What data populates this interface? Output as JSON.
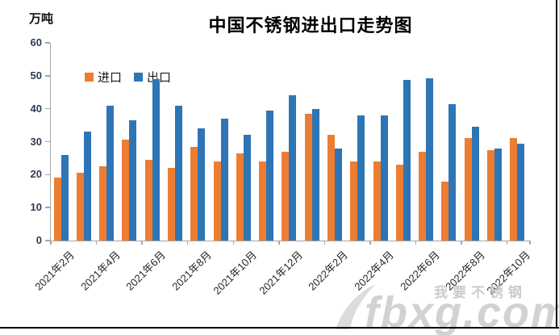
{
  "page": {
    "title_text": "中国不锈钢进出口走势图",
    "border_color": "#000000",
    "background": "#ffffff"
  },
  "watermark": {
    "text_cn": "我要不锈钢",
    "text_site": "fbxg.com",
    "color": "#cbcbcb"
  },
  "colors": {
    "import_orange": "#ED7D31",
    "export_blue": "#2E75B6",
    "axis_gray": "#A6A6A6"
  },
  "chart_data": {
    "type": "bar",
    "title": "中国不锈钢进出口走势图",
    "ylabel": "万吨",
    "xlabel": "",
    "ylim": [
      0,
      60
    ],
    "yticks": [
      0,
      10,
      20,
      30,
      40,
      50,
      60
    ],
    "grid": false,
    "legend_position": "top-left-inside",
    "x_label_interval": 2,
    "categories": [
      "2021年2月",
      "2021年3月",
      "2021年4月",
      "2021年5月",
      "2021年6月",
      "2021年7月",
      "2021年8月",
      "2021年9月",
      "2021年10月",
      "2021年11月",
      "2021年12月",
      "2022年1月",
      "2022年2月",
      "2022年3月",
      "2022年4月",
      "2022年5月",
      "2022年6月",
      "2022年7月",
      "2022年8月",
      "2022年9月",
      "2022年10月"
    ],
    "shown_tick_labels": [
      "2021年2月",
      "2021年4月",
      "2021年6月",
      "2021年8月",
      "2021年10月",
      "2021年12月",
      "2022年2月",
      "2022年4月",
      "2022年6月",
      "2022年8月",
      "2022年10月"
    ],
    "series": [
      {
        "name": "进口",
        "color": "#ED7D31",
        "values": [
          19,
          20.5,
          22.5,
          30.5,
          24.5,
          22,
          28.5,
          24,
          26.5,
          24,
          27,
          38.5,
          32,
          24,
          24,
          23,
          27,
          18,
          31,
          27.5,
          31
        ]
      },
      {
        "name": "出口",
        "color": "#2E75B6",
        "values": [
          26,
          33,
          41,
          36.5,
          49,
          41,
          34,
          37,
          32,
          39.5,
          44,
          40,
          28,
          38,
          38,
          48.8,
          49.2,
          41.5,
          34.5,
          28,
          29.5
        ]
      }
    ]
  }
}
